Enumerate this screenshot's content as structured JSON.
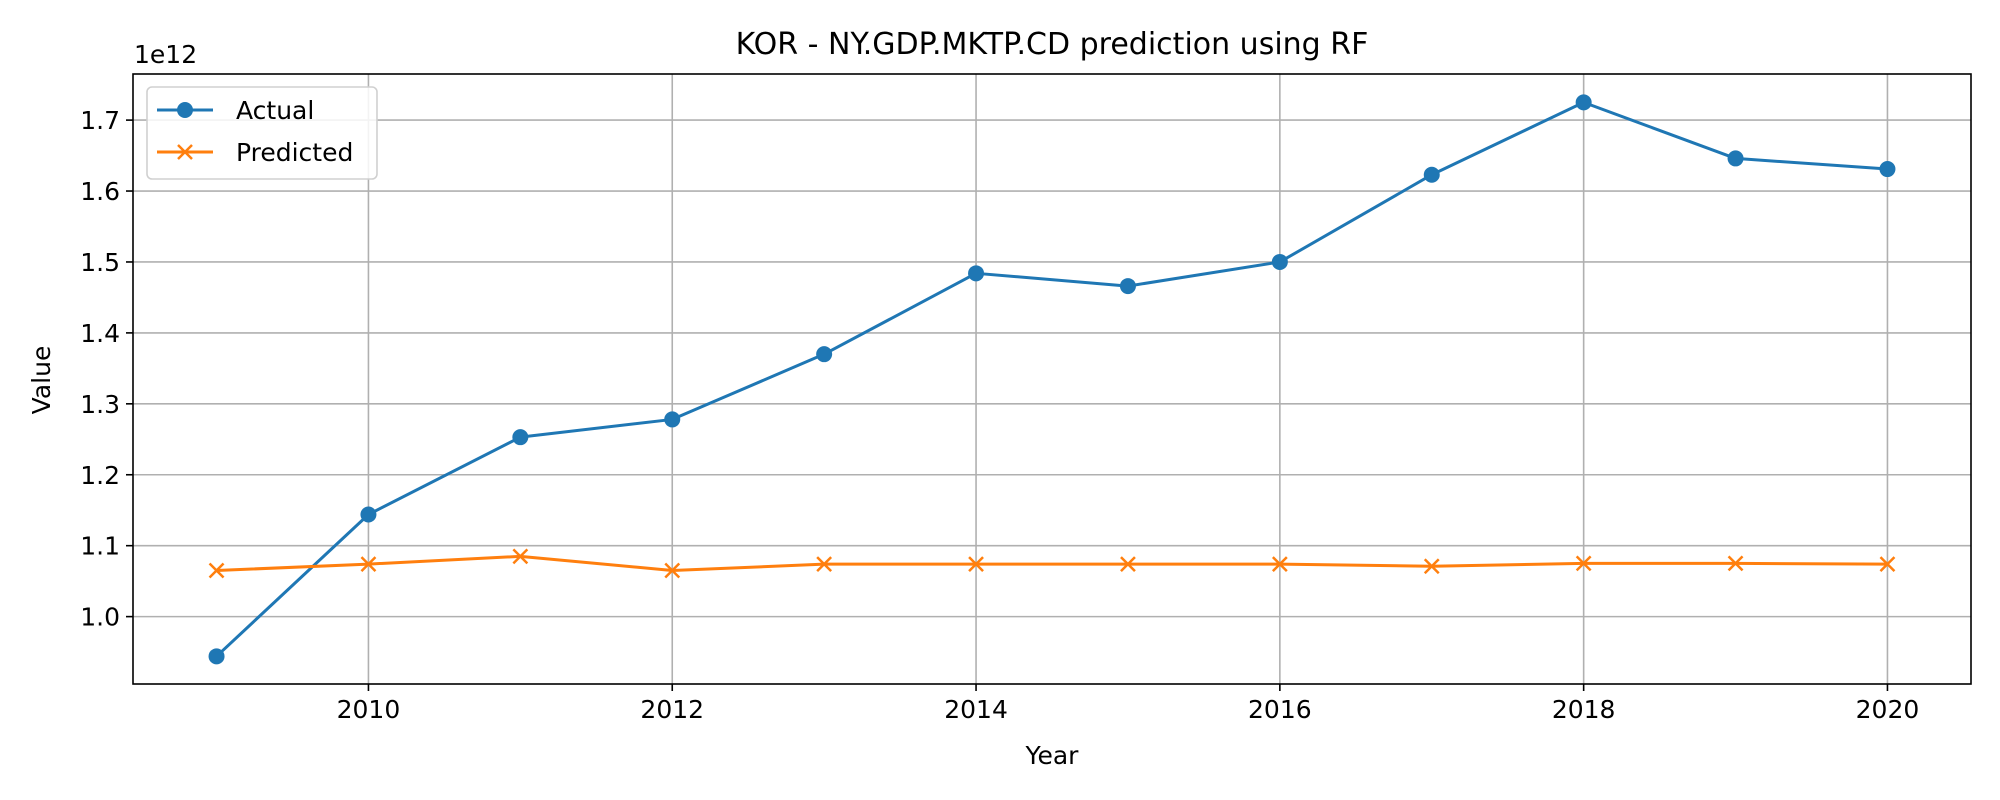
{
  "chart_data": {
    "type": "line",
    "title": "KOR - NY.GDP.MKTP.CD prediction using RF",
    "xlabel": "Year",
    "ylabel": "Value",
    "y_offset_label": "1e12",
    "x": [
      2009,
      2010,
      2011,
      2012,
      2013,
      2014,
      2015,
      2016,
      2017,
      2018,
      2019,
      2020
    ],
    "xlim": [
      2008.45,
      2020.55
    ],
    "ylim": [
      0.905,
      1.765
    ],
    "xticks": [
      2010,
      2012,
      2014,
      2016,
      2018,
      2020
    ],
    "yticks": [
      1.0,
      1.1,
      1.2,
      1.3,
      1.4,
      1.5,
      1.6,
      1.7
    ],
    "ytick_labels": [
      "1.0",
      "1.1",
      "1.2",
      "1.3",
      "1.4",
      "1.5",
      "1.6",
      "1.7"
    ],
    "grid": true,
    "legend_position": "top-left",
    "series": [
      {
        "name": "Actual",
        "color": "#1f77b4",
        "marker": "circle",
        "values": [
          0.944,
          1.144,
          1.253,
          1.278,
          1.37,
          1.484,
          1.466,
          1.5,
          1.623,
          1.725,
          1.646,
          1.631
        ]
      },
      {
        "name": "Predicted",
        "color": "#ff7f0e",
        "marker": "x",
        "values": [
          1.065,
          1.074,
          1.085,
          1.065,
          1.074,
          1.074,
          1.074,
          1.074,
          1.071,
          1.075,
          1.075,
          1.074
        ]
      }
    ]
  }
}
